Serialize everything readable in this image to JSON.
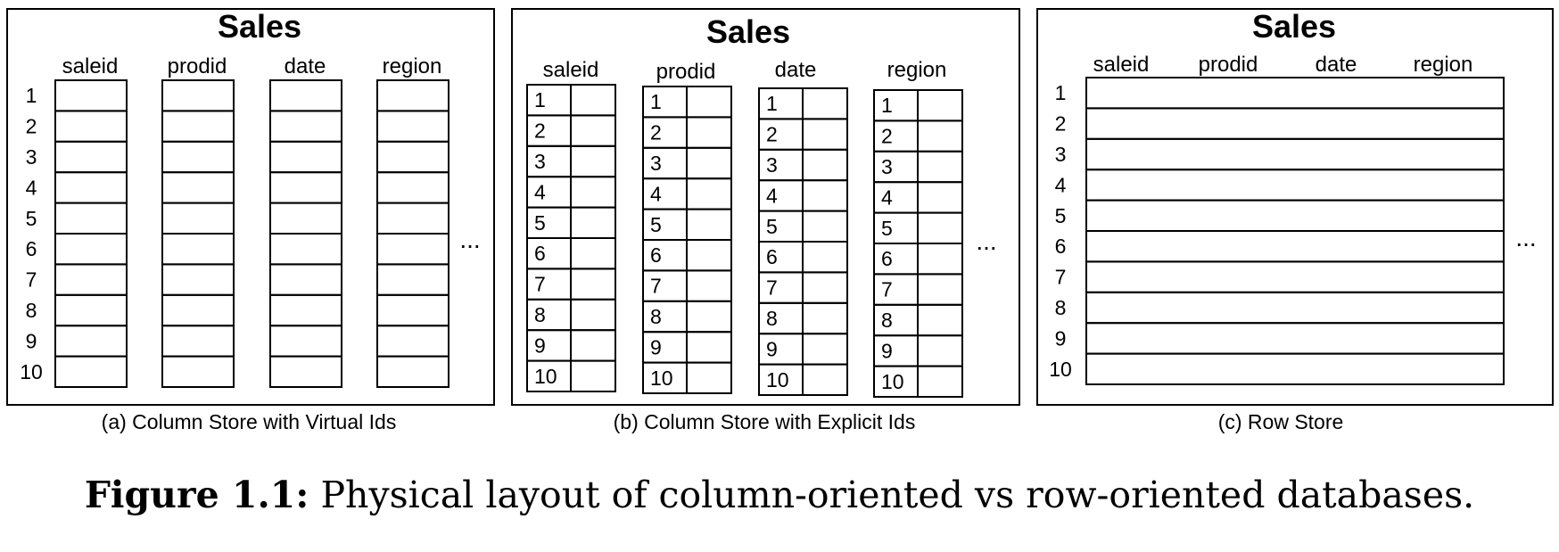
{
  "figure": {
    "label": "Figure 1.1:",
    "text": "Physical layout of column-oriented vs row-oriented databases."
  },
  "panels": [
    {
      "title": "Sales",
      "caption": "(a) Column Store with Virtual Ids",
      "columns": [
        "saleid",
        "prodid",
        "date",
        "region"
      ],
      "row_ids": [
        "1",
        "2",
        "3",
        "4",
        "5",
        "6",
        "7",
        "8",
        "9",
        "10"
      ],
      "ellipsis": "..."
    },
    {
      "title": "Sales",
      "caption": "(b) Column Store with Explicit Ids",
      "columns": [
        "saleid",
        "prodid",
        "date",
        "region"
      ],
      "row_ids": [
        "1",
        "2",
        "3",
        "4",
        "5",
        "6",
        "7",
        "8",
        "9",
        "10"
      ],
      "ellipsis": "..."
    },
    {
      "title": "Sales",
      "caption": "(c) Row  Store",
      "columns": [
        "saleid",
        "prodid",
        "date",
        "region"
      ],
      "row_ids": [
        "1",
        "2",
        "3",
        "4",
        "5",
        "6",
        "7",
        "8",
        "9",
        "10"
      ],
      "ellipsis": "..."
    }
  ]
}
